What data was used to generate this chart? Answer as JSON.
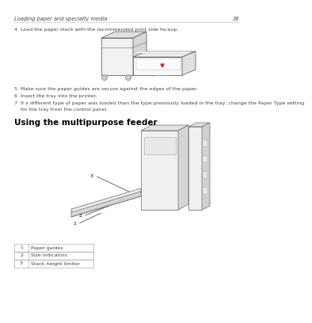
{
  "bg_color": "#ffffff",
  "header_text": "Loading paper and specialty media",
  "header_page": "36",
  "step4_text": "4  Load the paper stack with the recommended print side faceup.",
  "step5_text": "5  Make sure the paper guides are secure against the edges of the paper.",
  "step6_text": "6  Insert the tray into the printer.",
  "step7_line1": "7  If a different type of paper was loaded than the type previously loaded in the tray, change the Paper Type setting",
  "step7_line2": "    for the tray from the control panel.",
  "section_title": "Using the multipurpose feeder",
  "table_data": [
    [
      "1",
      "Paper guides"
    ],
    [
      "2",
      "Size indicators"
    ],
    [
      "3",
      "Stack height limiter"
    ]
  ],
  "font_color": "#444444",
  "header_line_color": "#bbbbbb",
  "table_border_color": "#999999",
  "font_size_header": 4.8,
  "font_size_body": 4.5,
  "font_size_section": 7.5
}
